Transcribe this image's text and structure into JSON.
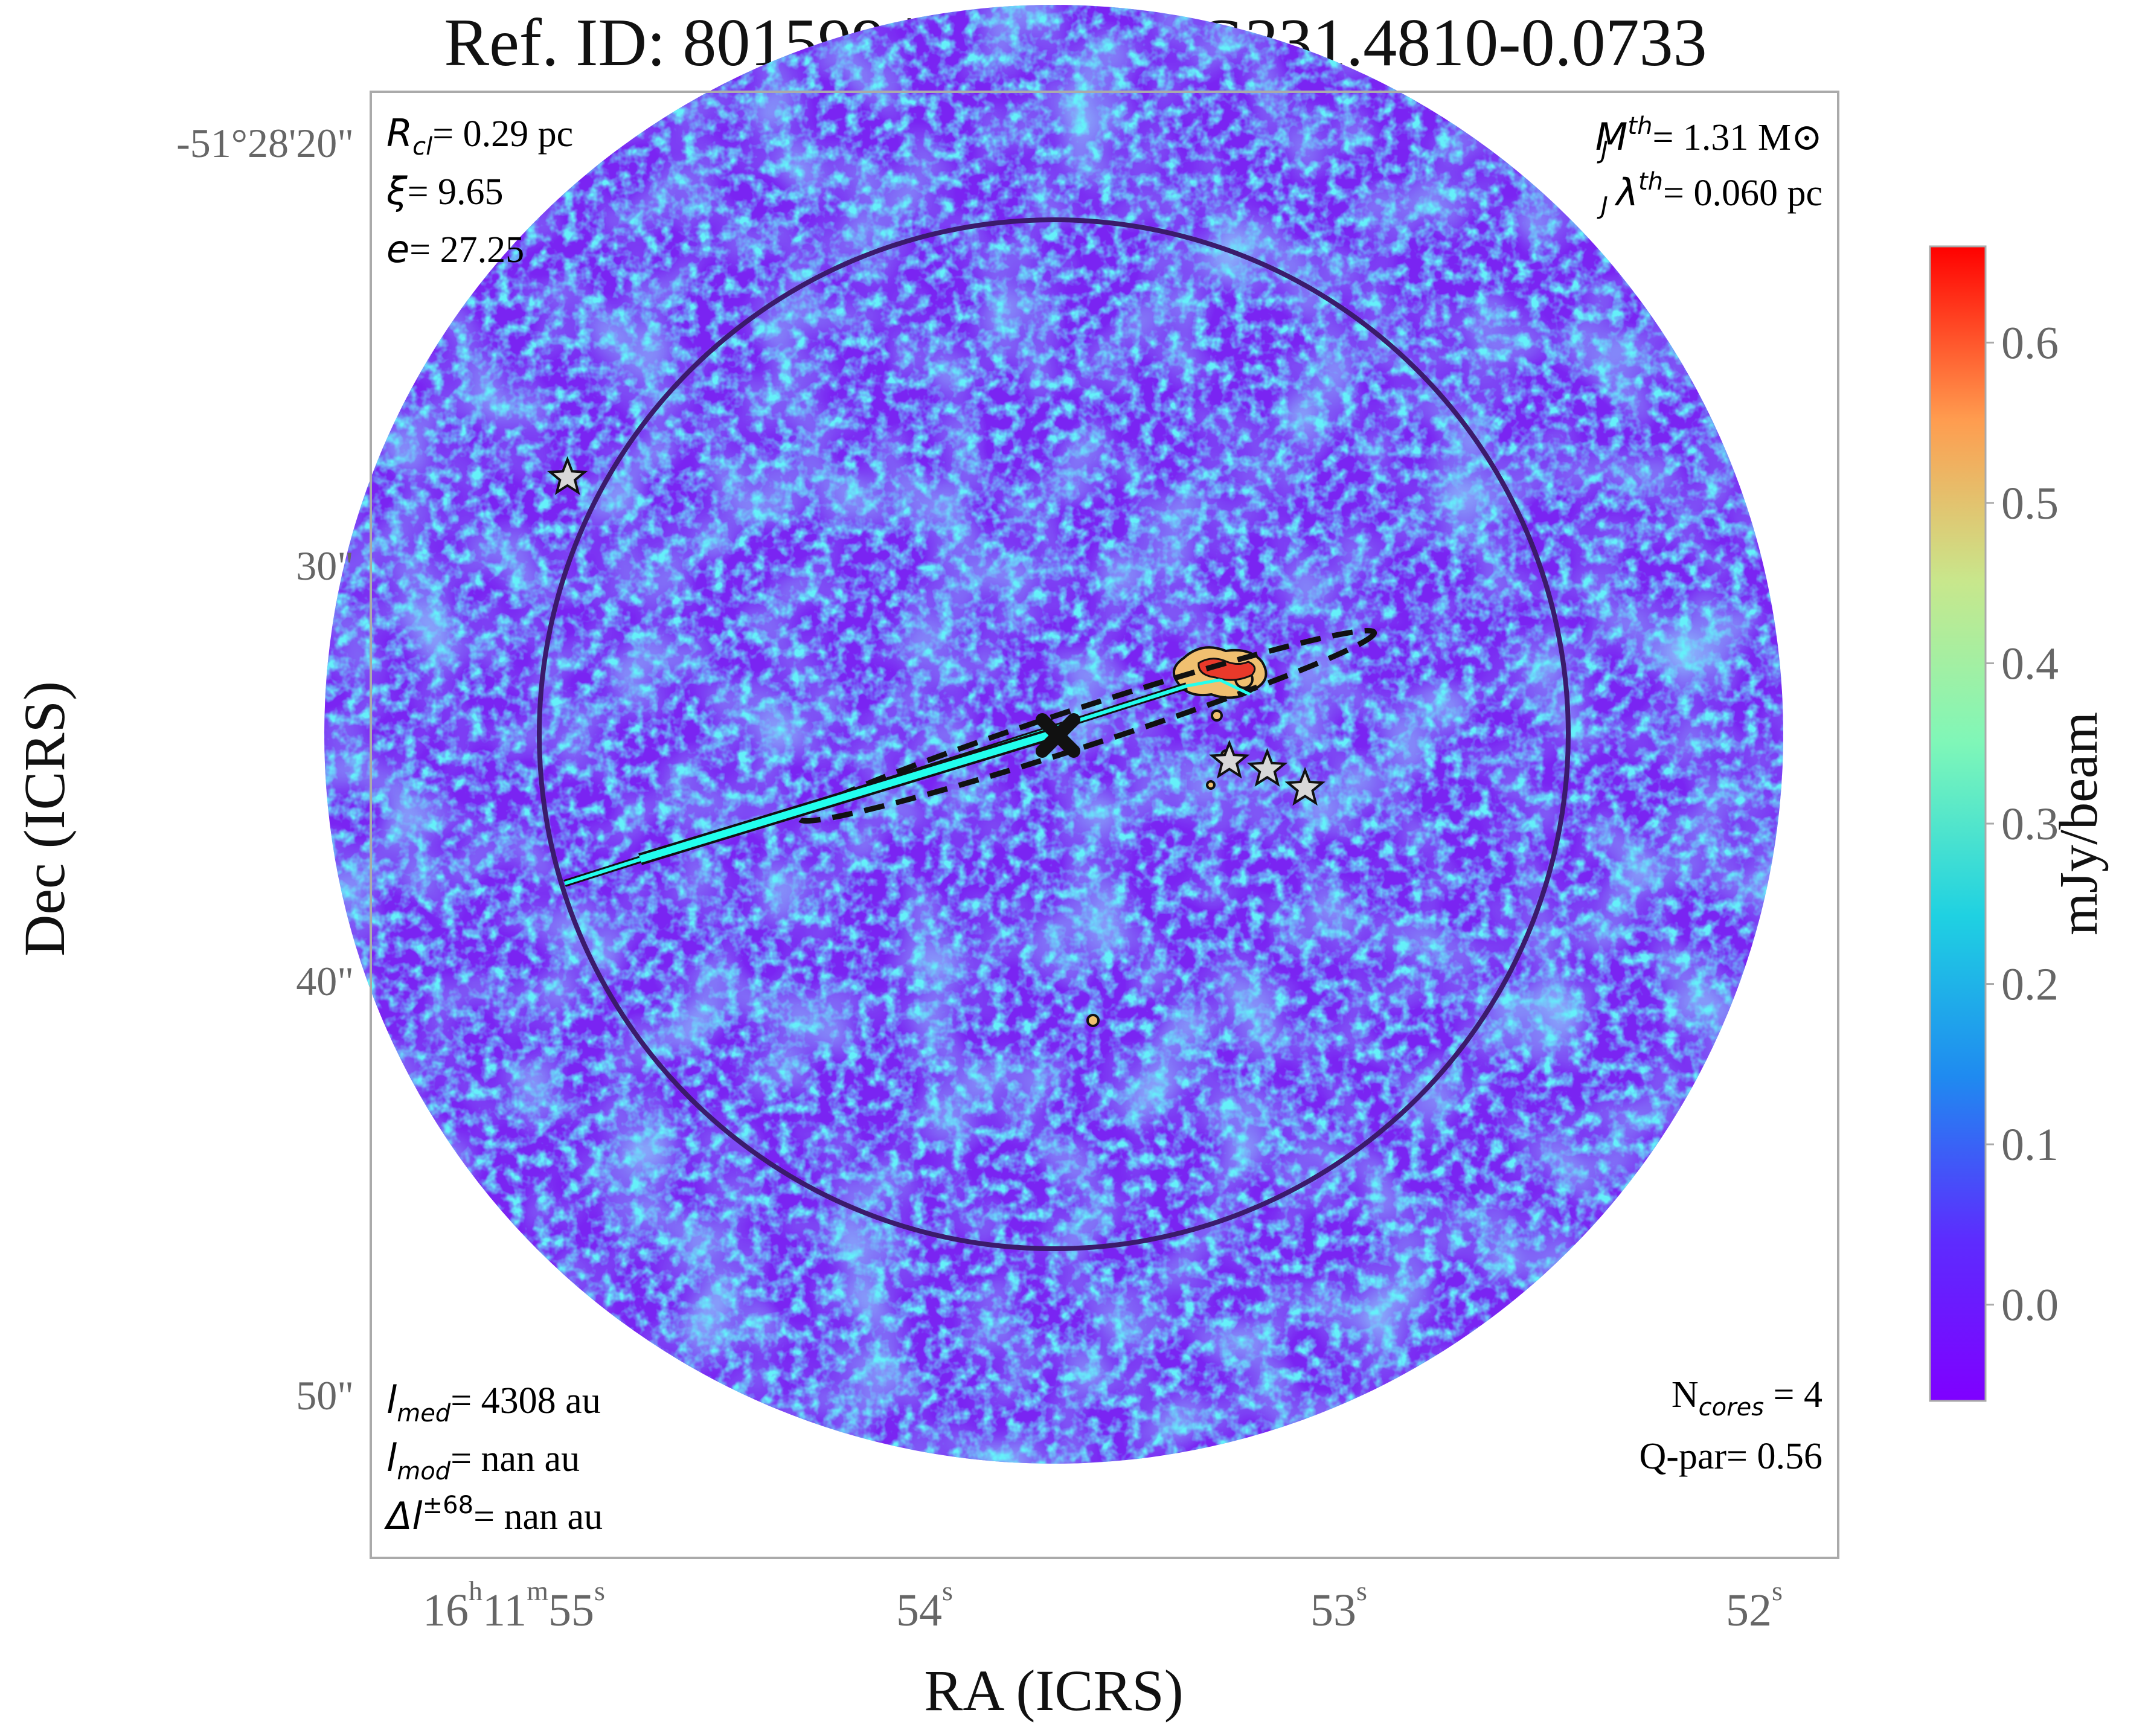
{
  "title": "Ref. ID: 801599 | AG ID: AG331.4810-0.0733",
  "chart_data": {
    "type": "heatmap",
    "title": "Ref. ID: 801599 | AG ID: AG331.4810-0.0733",
    "xlabel": "RA (ICRS)",
    "ylabel": "Dec (ICRS)",
    "x_ticks": [
      {
        "h": "16",
        "m": "11",
        "s": "55",
        "label": "16h11m55s"
      },
      {
        "s": "54",
        "label": "54s"
      },
      {
        "s": "53",
        "label": "53s"
      },
      {
        "s": "52",
        "label": "52s"
      }
    ],
    "y_ticks": [
      "-51°28'20\"",
      "30\"",
      "40\"",
      "50\""
    ],
    "colorbar": {
      "label": "mJy/beam",
      "ticks": [
        "0.0",
        "0.1",
        "0.2",
        "0.3",
        "0.4",
        "0.5",
        "0.6"
      ],
      "vmin": -0.06,
      "vmax": 0.66,
      "colormap": "rainbow"
    },
    "annotations": {
      "top_left": [
        {
          "sym": "R",
          "sub": "cl",
          "text": "= 0.29 pc"
        },
        {
          "sym": "ξ",
          "text": "= 9.65"
        },
        {
          "sym": "e",
          "text": "= 27.25"
        }
      ],
      "top_right": [
        {
          "sym": "M",
          "sub": "J",
          "sup": "th",
          "text": "= 1.31 M⊙"
        },
        {
          "sym": "λ",
          "sub": "J",
          "sup": "th",
          "text": "= 0.060 pc"
        }
      ],
      "bottom_left": [
        {
          "sym": "l",
          "sub": "med",
          "text": "= 4308 au"
        },
        {
          "sym": "l",
          "sub": "mod",
          "text": "= nan au"
        },
        {
          "sym": "Δl",
          "sup": "±68",
          "text": "= nan au"
        }
      ],
      "bottom_right": [
        {
          "sym": "N",
          "sub": "cores",
          "text": " = 4"
        },
        {
          "sym": "Q-par",
          "text": "= 0.56"
        }
      ]
    },
    "cores": [
      {
        "ra_offset_arcsec": 18.0,
        "dec_offset_arcsec": 9.5,
        "marker": "star"
      },
      {
        "ra_offset_arcsec": -6.5,
        "dec_offset_arcsec": -1.0,
        "marker": "star"
      },
      {
        "ra_offset_arcsec": -7.9,
        "dec_offset_arcsec": -1.3,
        "marker": "star"
      },
      {
        "ra_offset_arcsec": -9.3,
        "dec_offset_arcsec": -2.0,
        "marker": "star"
      }
    ],
    "center_marker": {
      "ra_offset_arcsec": 0.0,
      "dec_offset_arcsec": 0.0,
      "marker": "x"
    },
    "field_radius_arcsec": 27,
    "cluster_circle_radius_arcsec": 19
  },
  "colors": {
    "frame": "#aaaaaa",
    "cluster_circle": "#3b1a6b",
    "mst_edge": "#22ffee",
    "center_x": "#111111",
    "star_fill": "#d8d8d8",
    "tick_label": "#666666"
  }
}
